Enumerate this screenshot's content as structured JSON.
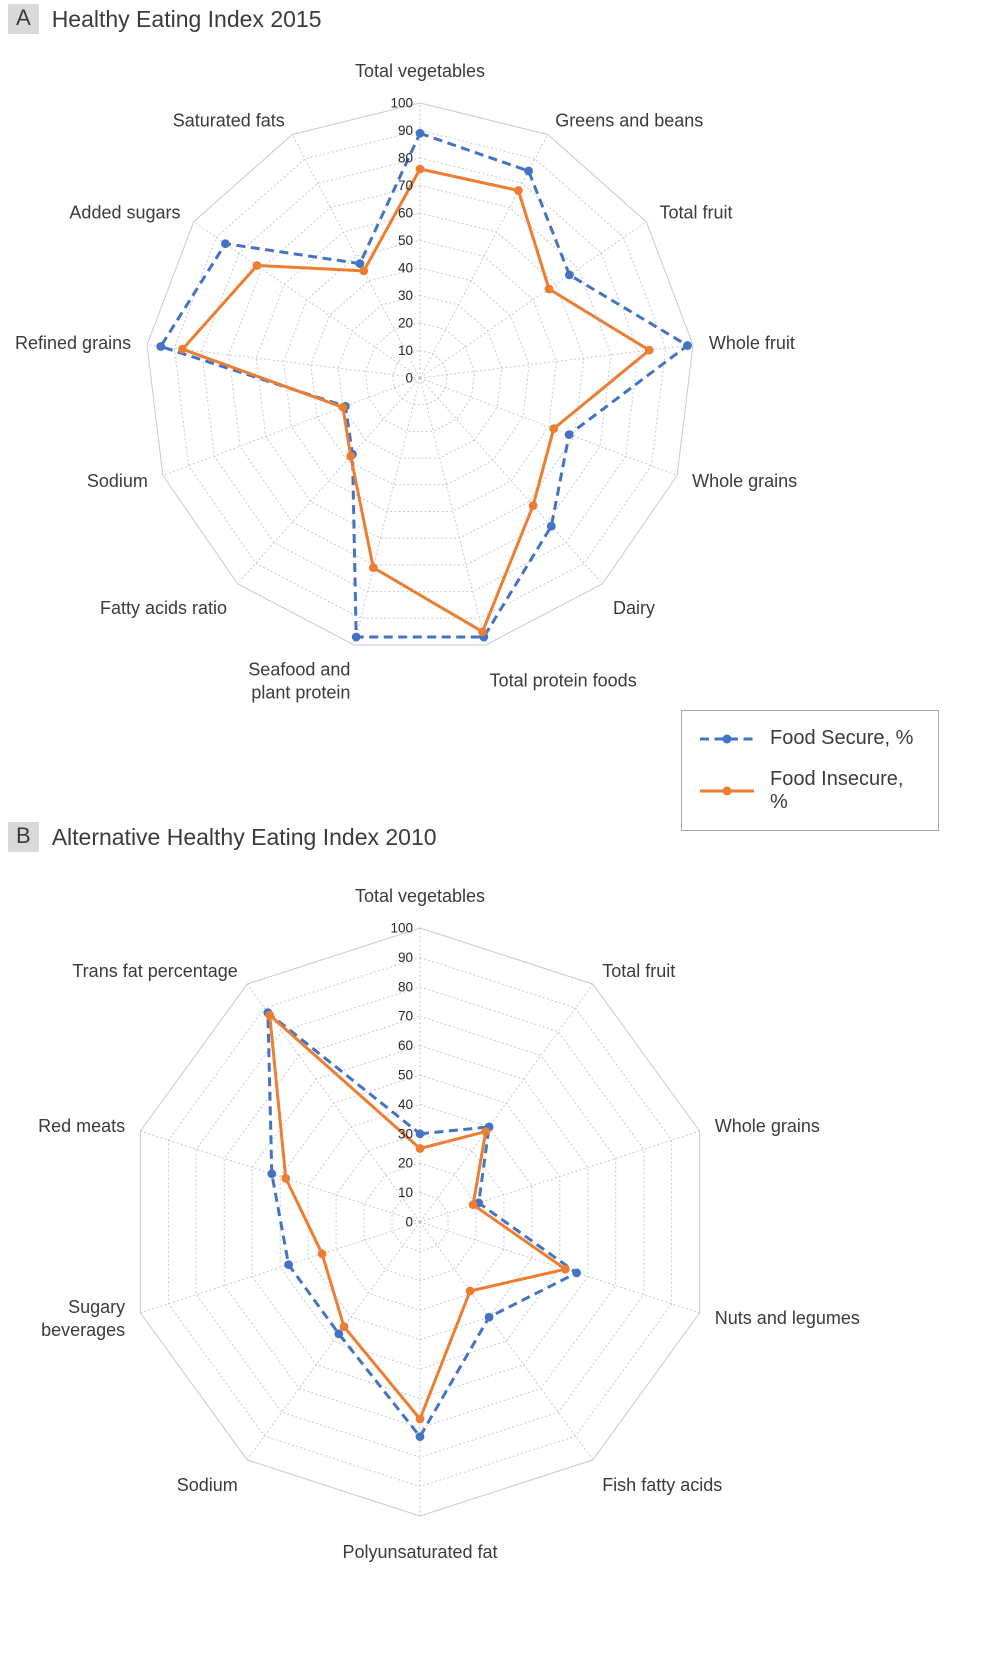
{
  "legend": {
    "items": [
      {
        "label": "Food Secure, %",
        "color": "#4472C4",
        "line_style": "dashed"
      },
      {
        "label": "Food Insecure, %",
        "color": "#ED7D31",
        "line_style": "solid"
      }
    ]
  },
  "grid_color": "#CBC6DD",
  "text_color": "#3b3b3b",
  "tick_color": "#262626",
  "chart_data": [
    {
      "type": "radar",
      "panel_label": "A",
      "title": "Healthy Eating Index 2015",
      "axis": {
        "min": 0,
        "max": 100,
        "step": 10,
        "tick_labels": [
          "0",
          "10",
          "20",
          "30",
          "40",
          "50",
          "60",
          "70",
          "80",
          "90",
          "100"
        ]
      },
      "grid": true,
      "legend_position": "right-below-panel",
      "categories": [
        "Total vegetables",
        "Greens and beans",
        "Total fruit",
        "Whole fruit",
        "Whole grains",
        "Dairy",
        "Total protein foods",
        "Seafood and\nplant protein",
        "Fatty acids ratio",
        "Sodium",
        "Refined grains",
        "Added sugars",
        "Saturated fats"
      ],
      "series": [
        {
          "name": "Food Secure, %",
          "color": "#4472C4",
          "line_style": "dashed",
          "values": [
            89,
            85,
            66,
            98,
            58,
            72,
            97,
            97,
            37,
            29,
            95,
            86,
            47
          ]
        },
        {
          "name": "Food Insecure, %",
          "color": "#ED7D31",
          "line_style": "solid",
          "values": [
            76,
            77,
            57,
            84,
            52,
            62,
            95,
            71,
            38,
            30,
            87,
            72,
            44
          ]
        }
      ]
    },
    {
      "type": "radar",
      "panel_label": "B",
      "title": "Alternative Healthy Eating Index 2010",
      "axis": {
        "min": 0,
        "max": 100,
        "step": 10,
        "tick_labels": [
          "0",
          "10",
          "20",
          "30",
          "40",
          "50",
          "60",
          "70",
          "80",
          "90",
          "100"
        ]
      },
      "grid": true,
      "legend_position": "shared-with-panel-A",
      "categories": [
        "Total vegetables",
        "Total fruit",
        "Whole grains",
        "Nuts and legumes",
        "Fish fatty acids",
        "Polyunsaturated fat",
        "Sodium",
        "Sugary\nbeverages",
        "Red meats",
        "Trans fat percentage"
      ],
      "series": [
        {
          "name": "Food Secure, %",
          "color": "#4472C4",
          "line_style": "dashed",
          "values": [
            30,
            40,
            21,
            56,
            40,
            73,
            47,
            47,
            53,
            88
          ]
        },
        {
          "name": "Food Insecure, %",
          "color": "#ED7D31",
          "line_style": "solid",
          "values": [
            25,
            38,
            19,
            52,
            29,
            67,
            44,
            35,
            48,
            87
          ]
        }
      ]
    }
  ]
}
